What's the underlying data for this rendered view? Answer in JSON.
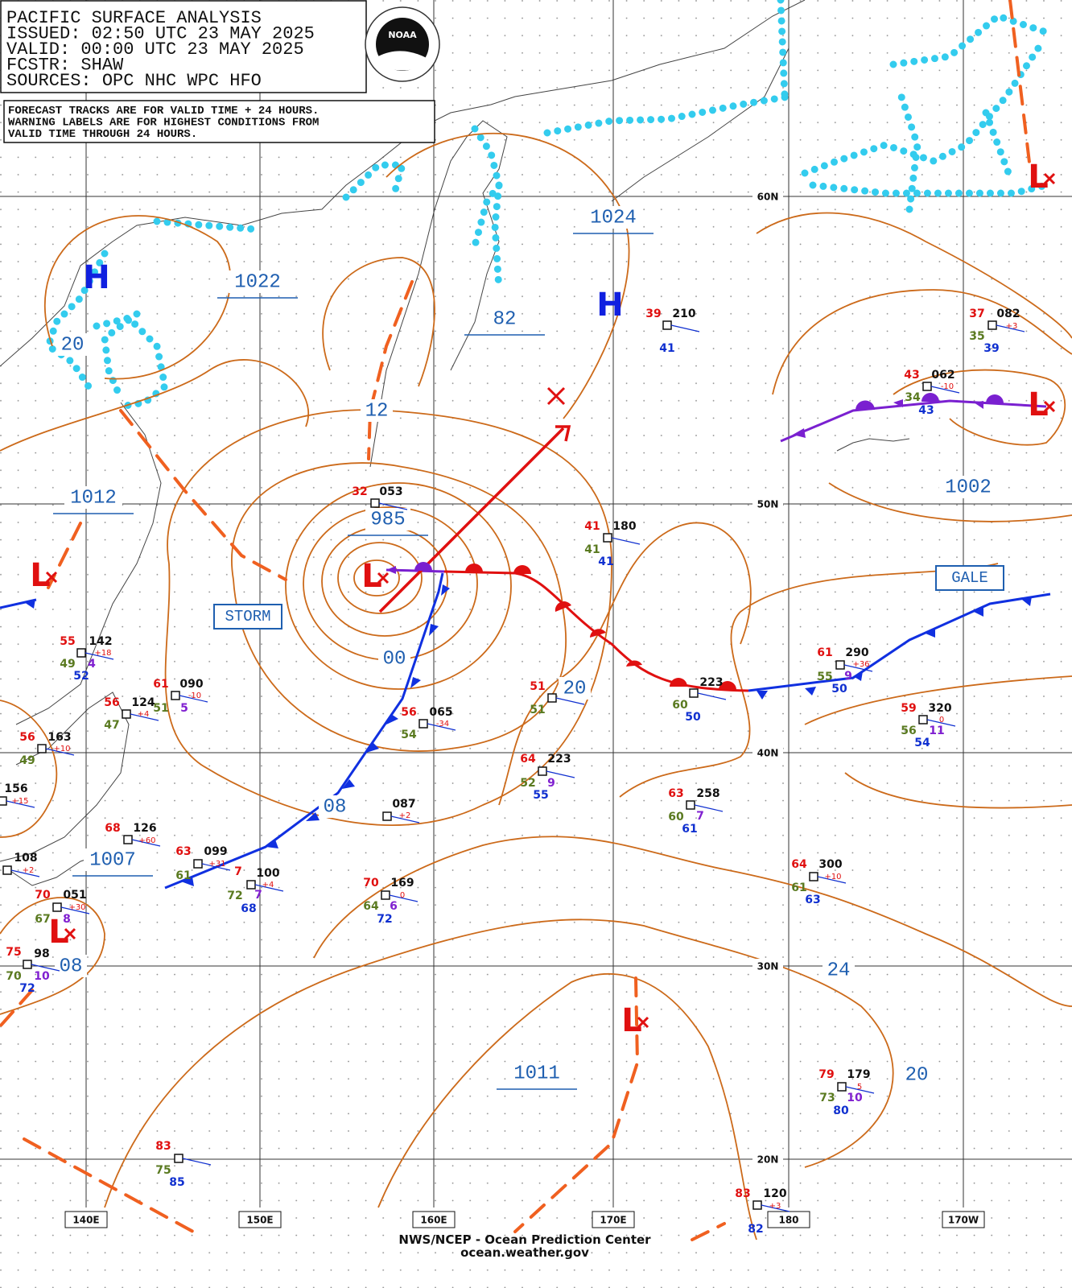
{
  "header": {
    "lines": [
      "PACIFIC SURFACE ANALYSIS",
      "ISSUED: 02:50 UTC 23 MAY 2025",
      "VALID:  00:00 UTC 23 MAY 2025",
      "FCSTR:  SHAW",
      "SOURCES: OPC NHC WPC HFO"
    ],
    "logo": "NOAA"
  },
  "note": [
    "FORECAST TRACKS ARE FOR VALID TIME + 24 HOURS.",
    "WARNING LABELS ARE FOR HIGHEST CONDITIONS FROM",
    "VALID TIME THROUGH 24 HOURS."
  ],
  "isobar_labels": [
    "1022",
    "1024",
    "82",
    "12",
    "985",
    "00",
    "1012",
    "1007",
    "08",
    "08",
    "20",
    "1011",
    "24",
    "20",
    "1002",
    "20"
  ],
  "centers": [
    "H",
    "H",
    "L",
    "L",
    "L",
    "L",
    "L",
    "L"
  ],
  "warnings": [
    "STORM",
    "GALE"
  ],
  "lat_labels": [
    "60N",
    "50N",
    "40N",
    "30N",
    "20N"
  ],
  "lon_labels": [
    "140E",
    "150E",
    "160E",
    "170E",
    "180",
    "170W"
  ],
  "stations": [
    [
      "39",
      "210",
      "41"
    ],
    [
      "37",
      "082",
      "35",
      "39",
      "+3"
    ],
    [
      "43",
      "062",
      "-10",
      "34",
      "43"
    ],
    [
      "32",
      "053"
    ],
    [
      "41",
      "180",
      "41",
      "41"
    ],
    [
      "55",
      "142",
      "+18",
      "49",
      "4",
      "52"
    ],
    [
      "61",
      "090",
      "-10",
      "51",
      "5"
    ],
    [
      "56",
      "124",
      "+4",
      "47"
    ],
    [
      "56",
      "065",
      "-34",
      "54"
    ],
    [
      "51",
      "51"
    ],
    [
      "61",
      "290",
      "+36",
      "55",
      "9",
      "50"
    ],
    [
      "223",
      "60",
      "50"
    ],
    [
      "59",
      "320",
      "0",
      "56",
      "11",
      "54"
    ],
    [
      "56",
      "163",
      "+10",
      "49"
    ],
    [
      "64",
      "223",
      "52",
      "9",
      "55"
    ],
    [
      "156",
      "+15"
    ],
    [
      "63",
      "258",
      "60",
      "7",
      "61"
    ],
    [
      "087",
      "+2"
    ],
    [
      "68",
      "126",
      "+60"
    ],
    [
      "108",
      "+2"
    ],
    [
      "63",
      "099",
      "+31",
      "61"
    ],
    [
      "7",
      "100",
      "+4",
      "72",
      "7",
      "68"
    ],
    [
      "64",
      "300",
      "+10",
      "61",
      "63"
    ],
    [
      "70",
      "169",
      "0",
      "64",
      "6",
      "72"
    ],
    [
      "70",
      "051",
      "+30",
      "67",
      "8"
    ],
    [
      "75",
      "98",
      "70",
      "10",
      "72"
    ],
    [
      "79",
      "179",
      "5",
      "73",
      "10",
      "80"
    ],
    [
      "83",
      "75",
      "85"
    ],
    [
      "83",
      "120",
      "+3",
      "82"
    ]
  ],
  "footer": [
    "NWS/NCEP - Ocean Prediction Center",
    "ocean.weather.gov"
  ]
}
